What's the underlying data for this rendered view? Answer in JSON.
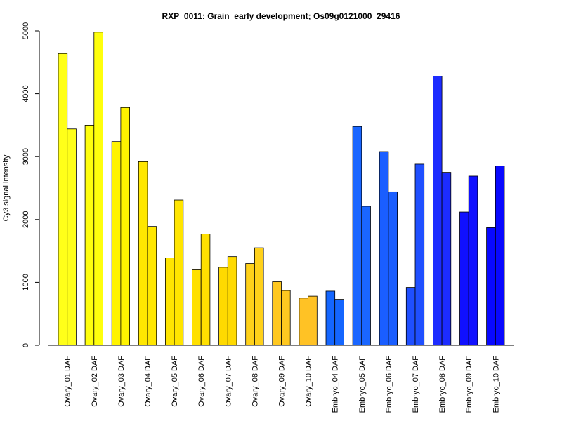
{
  "chart_data": {
    "type": "bar",
    "title": "RXP_0011: Grain_early development; Os09g0121000_29416",
    "xlabel": "",
    "ylabel": "Cy3 signal intensity",
    "ylim": [
      0,
      5000
    ],
    "yticks": [
      0,
      1000,
      2000,
      3000,
      4000,
      5000
    ],
    "grid": false,
    "categories": [
      "Ovary_01 DAF",
      "Ovary_02 DAF",
      "Ovary_03 DAF",
      "Ovary_04 DAF",
      "Ovary_05 DAF",
      "Ovary_06 DAF",
      "Ovary_07 DAF",
      "Ovary_08 DAF",
      "Ovary_09 DAF",
      "Ovary_10 DAF",
      "Embryo_04 DAF",
      "Embryo_05 DAF",
      "Embryo_06 DAF",
      "Embryo_07 DAF",
      "Embryo_08 DAF",
      "Embryo_09 DAF",
      "Embryo_10 DAF"
    ],
    "series": [
      {
        "values": [
          4640,
          3500,
          3240,
          2920,
          1390,
          1200,
          1240,
          1300,
          1010,
          750,
          860,
          3480,
          3080,
          920,
          4280,
          2120,
          1870
        ]
      },
      {
        "values": [
          3440,
          4980,
          3780,
          1890,
          2310,
          1770,
          1410,
          1550,
          870,
          780,
          730,
          2210,
          2440,
          2880,
          2750,
          2690,
          2850
        ]
      }
    ],
    "category_colors": [
      "#FFFF19",
      "#FFFF0D",
      "#FFF300",
      "#FFE700",
      "#FFE500",
      "#FFE000",
      "#FFDA00",
      "#FFD11A",
      "#FFC820",
      "#FFC225",
      "#1466FF",
      "#1A66FF",
      "#1A5EFF",
      "#1F4FFF",
      "#1D2CFF",
      "#1010FF",
      "#0808FF"
    ]
  }
}
